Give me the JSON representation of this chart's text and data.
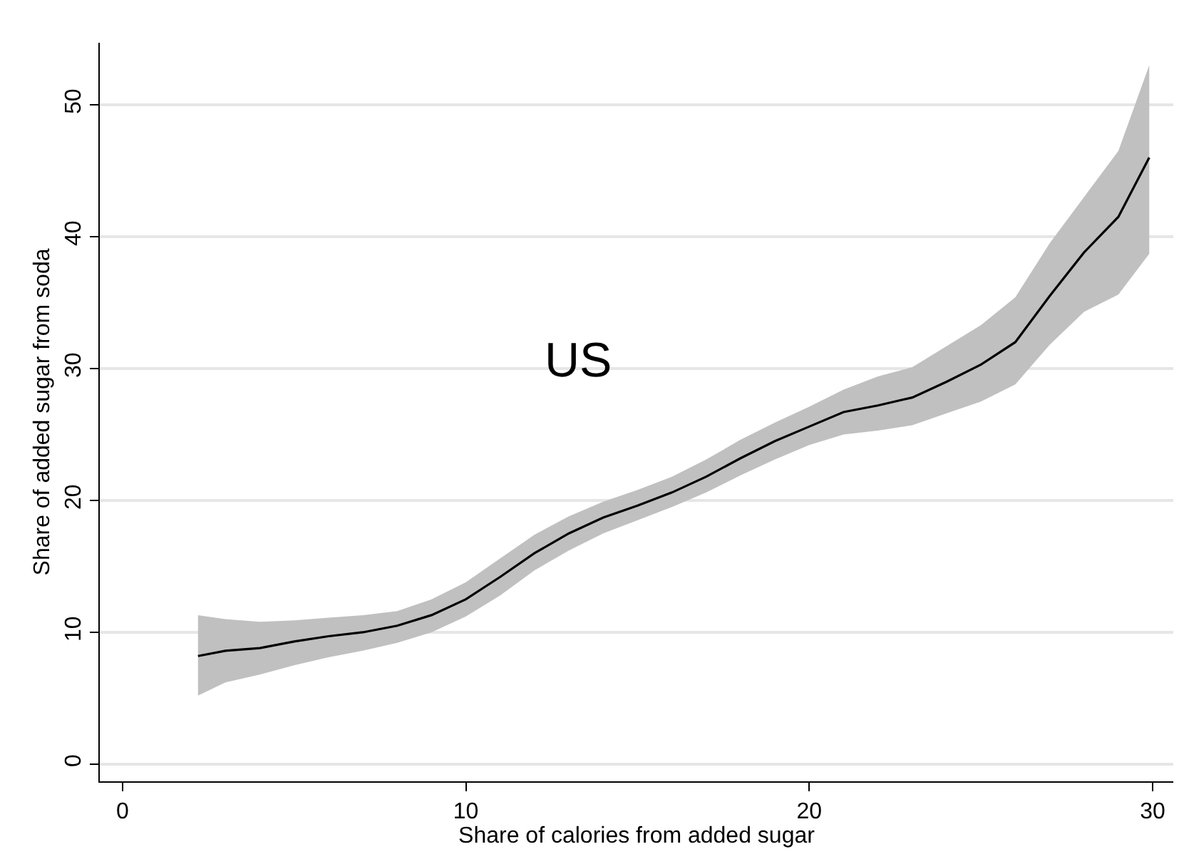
{
  "chart_data": {
    "type": "line",
    "xlabel": "Share of calories from added sugar",
    "ylabel": "Share of added sugar from soda",
    "annotations": [
      "US"
    ],
    "x": [
      2.2,
      3,
      4,
      5,
      6,
      7,
      8,
      9,
      10,
      11,
      12,
      13,
      14,
      15,
      16,
      17,
      18,
      19,
      20,
      21,
      22,
      23,
      24,
      25,
      26,
      27,
      28,
      29,
      29.9
    ],
    "series": [
      {
        "color": "#000000",
        "values": [
          8.2,
          8.6,
          8.8,
          9.3,
          9.7,
          10.0,
          10.5,
          11.3,
          12.5,
          14.2,
          16.0,
          17.5,
          18.7,
          19.6,
          20.6,
          21.8,
          23.2,
          24.5,
          25.6,
          26.7,
          27.2,
          27.8,
          29.0,
          30.3,
          32.0,
          35.5,
          38.8,
          41.5,
          46.0
        ],
        "lower": [
          5.2,
          6.2,
          6.8,
          7.5,
          8.1,
          8.6,
          9.2,
          10.0,
          11.2,
          12.8,
          14.7,
          16.2,
          17.5,
          18.5,
          19.5,
          20.6,
          21.9,
          23.1,
          24.2,
          25.0,
          25.3,
          25.7,
          26.6,
          27.5,
          28.8,
          31.8,
          34.3,
          35.6,
          38.7
        ],
        "upper": [
          11.3,
          11.0,
          10.8,
          10.9,
          11.1,
          11.3,
          11.6,
          12.5,
          13.8,
          15.6,
          17.4,
          18.8,
          19.9,
          20.8,
          21.8,
          23.1,
          24.6,
          25.9,
          27.1,
          28.4,
          29.4,
          30.1,
          31.7,
          33.3,
          35.4,
          39.5,
          43.0,
          46.5,
          53.0
        ]
      }
    ],
    "xlim": [
      -0.66,
      30.6
    ],
    "xticks": [
      0,
      10,
      20,
      30
    ],
    "ylim": [
      -1.3,
      54.7
    ],
    "yticks": [
      0,
      10,
      20,
      30,
      40,
      50
    ],
    "grid": "y",
    "marker": "none",
    "line_style": "solid"
  }
}
